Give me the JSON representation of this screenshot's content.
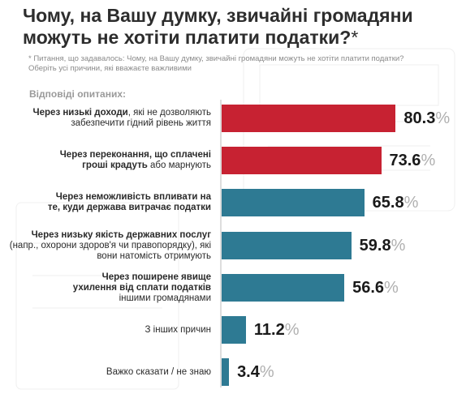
{
  "title_lines": [
    "Чому, на Вашу думку, звичайні громадяни",
    "можуть не хотіти платити податки?"
  ],
  "title_asterisk": "*",
  "note_lines": [
    "* Питання, що задавалось: Чому, на Вашу думку, звичайні громадяни можуть не хотіти платити податки?",
    "Оберіть усі причини, які вважаєте важливими"
  ],
  "subhead": "Відповіді опитаних:",
  "colors": {
    "red": "#c72232",
    "teal": "#2e7a93",
    "title": "#2d2d2d"
  },
  "chart_data": {
    "type": "bar",
    "orientation": "horizontal",
    "unit": "%",
    "xlim": [
      0,
      100
    ],
    "grid": false,
    "categories": [
      [
        [
          {
            "t": "Через низькі доходи",
            "b": true
          },
          {
            "t": ", які не дозволяють",
            "b": false
          }
        ],
        [
          {
            "t": "забезпечити гідний рівень життя",
            "b": false
          }
        ]
      ],
      [
        [
          {
            "t": "Через переконання, що сплачені",
            "b": true
          }
        ],
        [
          {
            "t": "гроші крадуть",
            "b": true
          },
          {
            "t": " або марнують",
            "b": false
          }
        ]
      ],
      [
        [
          {
            "t": "Через неможливість впливати на",
            "b": true
          }
        ],
        [
          {
            "t": "те, куди держава витрачає податки",
            "b": true
          }
        ]
      ],
      [
        [
          {
            "t": "Через низьку якість державних послуг",
            "b": true
          }
        ],
        [
          {
            "t": "(напр., охорони здоров'я чи правопорядку), які",
            "b": false
          }
        ],
        [
          {
            "t": "вони натомість отримують",
            "b": false
          }
        ]
      ],
      [
        [
          {
            "t": "Через поширене явище",
            "b": true
          }
        ],
        [
          {
            "t": "ухилення від сплати податків",
            "b": true
          }
        ],
        [
          {
            "t": "іншими громадянами",
            "b": false
          }
        ]
      ],
      [
        [
          {
            "t": "З інших причин",
            "b": false
          }
        ]
      ],
      [
        [
          {
            "t": "Важко сказати / не знаю",
            "b": false
          }
        ]
      ]
    ],
    "values": [
      80.3,
      73.6,
      65.8,
      59.8,
      56.6,
      11.2,
      3.4
    ],
    "value_labels": [
      "80.3",
      "73.6",
      "65.8",
      "59.8",
      "56.6",
      "11.2",
      "3.4"
    ],
    "bar_colors": [
      "red",
      "red",
      "teal",
      "teal",
      "teal",
      "teal",
      "teal"
    ]
  }
}
